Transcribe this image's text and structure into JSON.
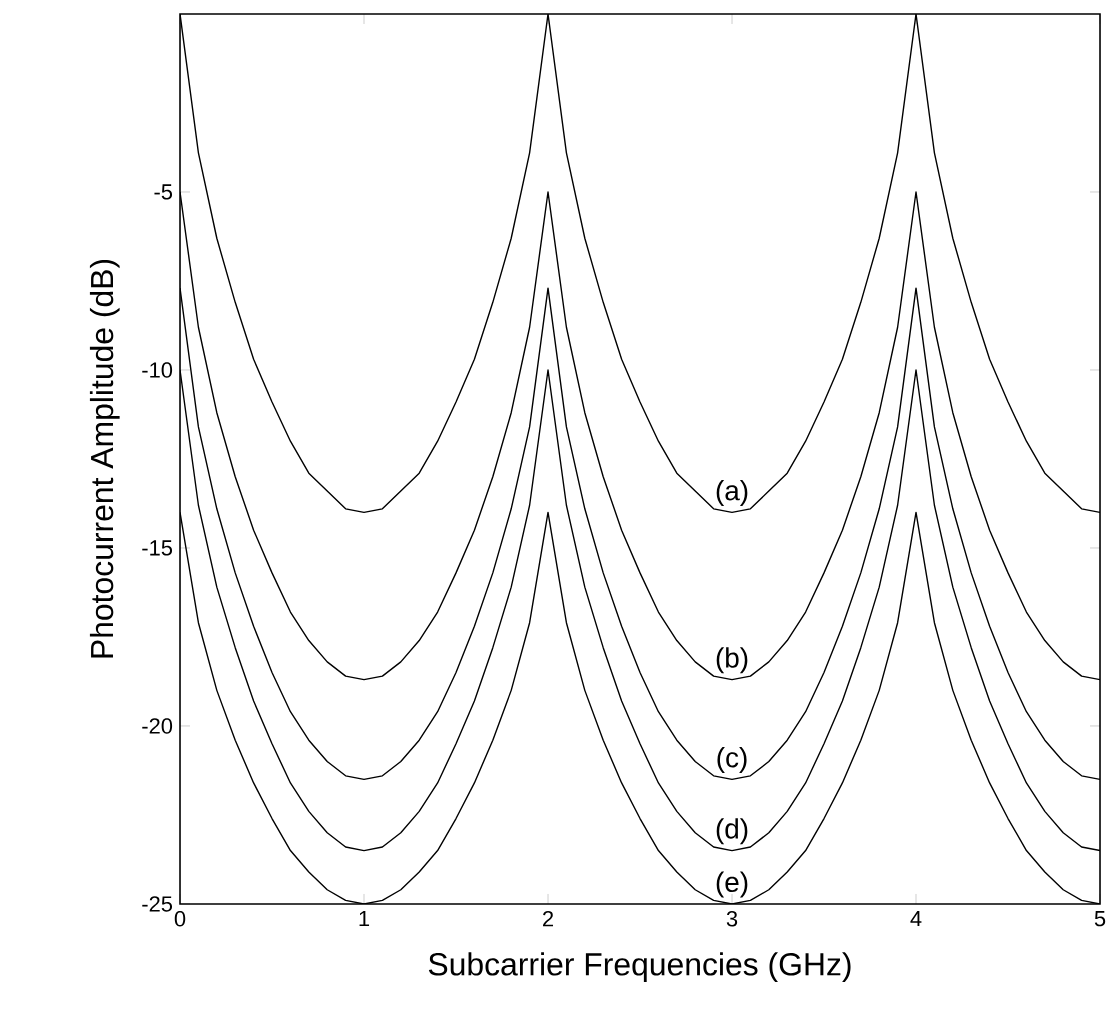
{
  "chart_data": {
    "type": "line",
    "xlabel": "Subcarrier Frequencies (GHz)",
    "ylabel": "Photocurrent Amplitude (dB)",
    "x": [
      0,
      0.1,
      0.2,
      0.3,
      0.4,
      0.5,
      0.6,
      0.7,
      0.8,
      0.9,
      1,
      1.1,
      1.2,
      1.3,
      1.4,
      1.5,
      1.6,
      1.7,
      1.8,
      1.9,
      2,
      2.1,
      2.2,
      2.3,
      2.4,
      2.5,
      2.6,
      2.7,
      2.8,
      2.9,
      3,
      3.1,
      3.2,
      3.3,
      3.4,
      3.5,
      3.6,
      3.7,
      3.8,
      3.9,
      4,
      4.1,
      4.2,
      4.3,
      4.4,
      4.5,
      4.6,
      4.7,
      4.8,
      4.9,
      5
    ],
    "series": [
      {
        "name": "(a)",
        "color": "#000000",
        "values": [
          0,
          -3.9,
          -6.3,
          -8.1,
          -9.7,
          -10.9,
          -12.0,
          -12.9,
          -13.4,
          -13.9,
          -14.0,
          -13.9,
          -13.4,
          -12.9,
          -12.0,
          -10.9,
          -9.7,
          -8.1,
          -6.3,
          -3.9,
          0,
          -3.9,
          -6.3,
          -8.1,
          -9.7,
          -10.9,
          -12.0,
          -12.9,
          -13.4,
          -13.9,
          -14.0,
          -13.9,
          -13.4,
          -12.9,
          -12.0,
          -10.9,
          -9.7,
          -8.1,
          -6.3,
          -3.9,
          0,
          -3.9,
          -6.3,
          -8.1,
          -9.7,
          -10.9,
          -12.0,
          -12.9,
          -13.4,
          -13.9,
          -14.0
        ]
      },
      {
        "name": "(b)",
        "color": "#000000",
        "values": [
          -5.0,
          -8.8,
          -11.2,
          -13.0,
          -14.5,
          -15.7,
          -16.8,
          -17.6,
          -18.2,
          -18.6,
          -18.7,
          -18.6,
          -18.2,
          -17.6,
          -16.8,
          -15.7,
          -14.5,
          -13.0,
          -11.2,
          -8.8,
          -5.0,
          -8.8,
          -11.2,
          -13.0,
          -14.5,
          -15.7,
          -16.8,
          -17.6,
          -18.2,
          -18.6,
          -18.7,
          -18.6,
          -18.2,
          -17.6,
          -16.8,
          -15.7,
          -14.5,
          -13.0,
          -11.2,
          -8.8,
          -5.0,
          -8.8,
          -11.2,
          -13.0,
          -14.5,
          -15.7,
          -16.8,
          -17.6,
          -18.2,
          -18.6,
          -18.7
        ]
      },
      {
        "name": "(c)",
        "color": "#000000",
        "values": [
          -7.7,
          -11.6,
          -13.9,
          -15.7,
          -17.2,
          -18.5,
          -19.6,
          -20.4,
          -21.0,
          -21.4,
          -21.5,
          -21.4,
          -21.0,
          -20.4,
          -19.6,
          -18.5,
          -17.2,
          -15.7,
          -13.9,
          -11.6,
          -7.7,
          -11.6,
          -13.9,
          -15.7,
          -17.2,
          -18.5,
          -19.6,
          -20.4,
          -21.0,
          -21.4,
          -21.5,
          -21.4,
          -21.0,
          -20.4,
          -19.6,
          -18.5,
          -17.2,
          -15.7,
          -13.9,
          -11.6,
          -7.7,
          -11.6,
          -13.9,
          -15.7,
          -17.2,
          -18.5,
          -19.6,
          -20.4,
          -21.0,
          -21.4,
          -21.5
        ]
      },
      {
        "name": "(d)",
        "color": "#000000",
        "values": [
          -10.0,
          -13.8,
          -16.1,
          -17.8,
          -19.3,
          -20.5,
          -21.6,
          -22.4,
          -23.0,
          -23.4,
          -23.5,
          -23.4,
          -23.0,
          -22.4,
          -21.6,
          -20.5,
          -19.3,
          -17.8,
          -16.1,
          -13.8,
          -10.0,
          -13.8,
          -16.1,
          -17.8,
          -19.3,
          -20.5,
          -21.6,
          -22.4,
          -23.0,
          -23.4,
          -23.5,
          -23.4,
          -23.0,
          -22.4,
          -21.6,
          -20.5,
          -19.3,
          -17.8,
          -16.1,
          -13.8,
          -10.0,
          -13.8,
          -16.1,
          -17.8,
          -19.3,
          -20.5,
          -21.6,
          -22.4,
          -23.0,
          -23.4,
          -23.5
        ]
      },
      {
        "name": "(e)",
        "color": "#000000",
        "values": [
          -14.0,
          -17.1,
          -19.0,
          -20.4,
          -21.6,
          -22.6,
          -23.5,
          -24.1,
          -24.6,
          -24.9,
          -25.0,
          -24.9,
          -24.6,
          -24.1,
          -23.5,
          -22.6,
          -21.6,
          -20.4,
          -19.0,
          -17.1,
          -14.0,
          -17.1,
          -19.0,
          -20.4,
          -21.6,
          -22.6,
          -23.5,
          -24.1,
          -24.6,
          -24.9,
          -25.0,
          -24.9,
          -24.6,
          -24.1,
          -23.5,
          -22.6,
          -21.6,
          -20.4,
          -19.0,
          -17.1,
          -14.0,
          -17.1,
          -19.0,
          -20.4,
          -21.6,
          -22.6,
          -23.5,
          -24.1,
          -24.6,
          -24.9,
          -25.0
        ]
      }
    ],
    "xlim": [
      0,
      5
    ],
    "xticks": [
      0,
      1,
      2,
      3,
      4,
      5
    ],
    "ylim": [
      -25,
      0
    ],
    "yticks": [
      -25,
      -20,
      -15,
      -10,
      -5
    ],
    "grid": false,
    "marker": "none",
    "line_style": "solid"
  }
}
